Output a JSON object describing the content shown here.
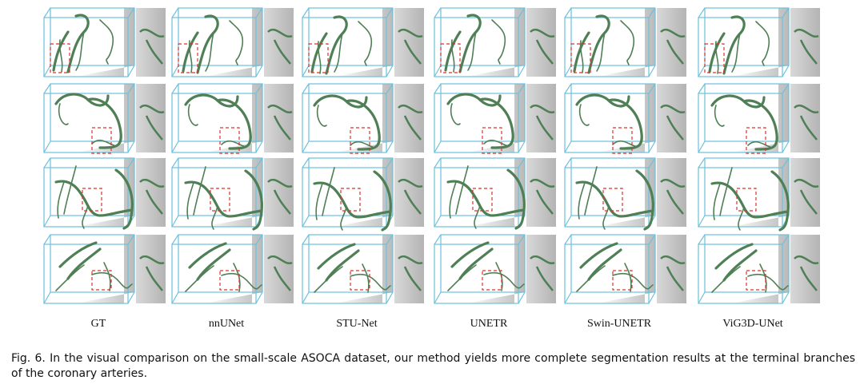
{
  "figure": {
    "columns": [
      "GT",
      "nnUNet",
      "STU-Net",
      "UNETR",
      "Swin-UNETR",
      "ViG3D-UNet"
    ],
    "caption": "Fig. 6.   In the visual comparison on the small-scale ASOCA dataset, our method yields more complete segmentation results at the terminal branches of the coronary arteries."
  }
}
